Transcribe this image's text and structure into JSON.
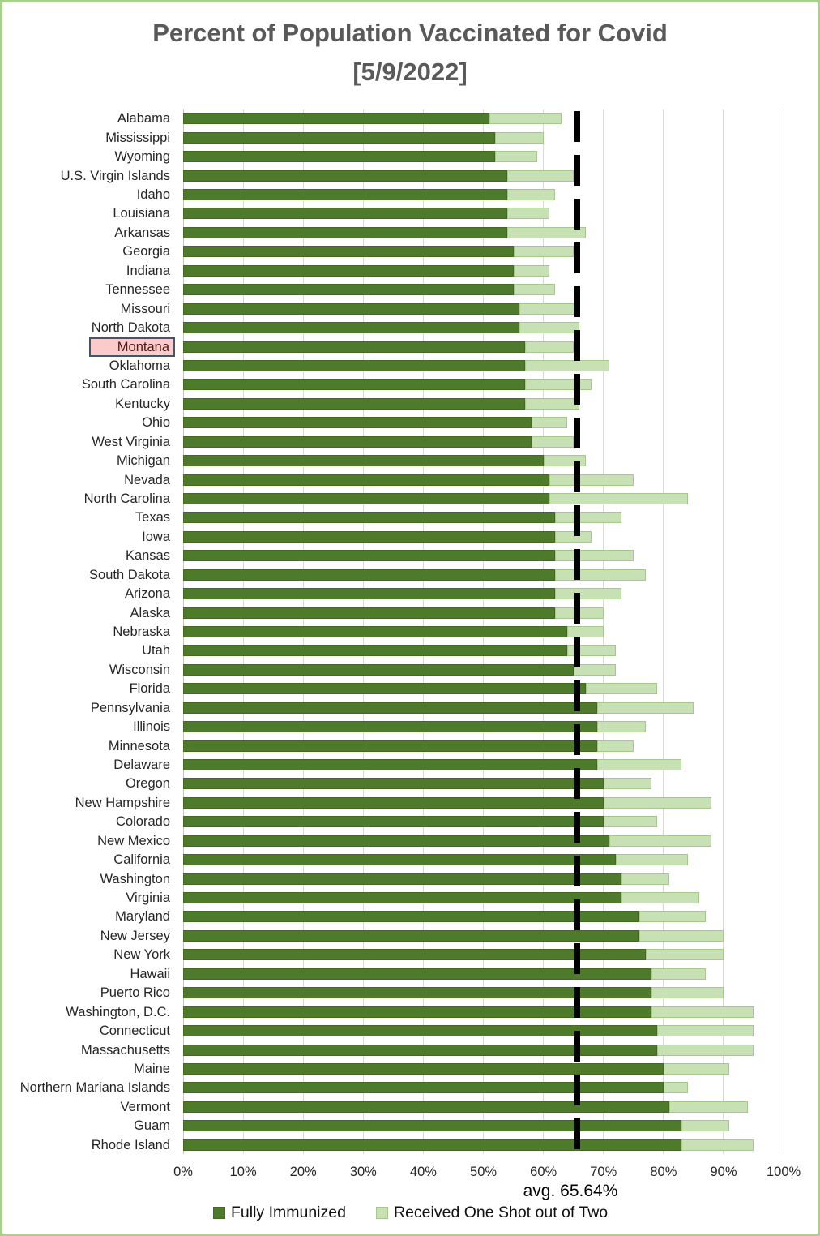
{
  "title": {
    "line1": "Percent of Population Vaccinated for Covid",
    "line2": "[5/9/2022]"
  },
  "chart_data": {
    "type": "bar",
    "orientation": "horizontal",
    "stacked": true,
    "title": "Percent of Population Vaccinated for Covid [5/9/2022]",
    "categories": [
      "Alabama",
      "Mississippi",
      "Wyoming",
      "U.S. Virgin Islands",
      "Idaho",
      "Louisiana",
      "Arkansas",
      "Georgia",
      "Indiana",
      "Tennessee",
      "Missouri",
      "North Dakota",
      "Montana",
      "Oklahoma",
      "South Carolina",
      "Kentucky",
      "Ohio",
      "West Virginia",
      "Michigan",
      "Nevada",
      "North Carolina",
      "Texas",
      "Iowa",
      "Kansas",
      "South Dakota",
      "Arizona",
      "Alaska",
      "Nebraska",
      "Utah",
      "Wisconsin",
      "Florida",
      "Pennsylvania",
      "Illinois",
      "Minnesota",
      "Delaware",
      "Oregon",
      "New Hampshire",
      "Colorado",
      "New Mexico",
      "California",
      "Washington",
      "Virginia",
      "Maryland",
      "New Jersey",
      "New York",
      "Hawaii",
      "Puerto Rico",
      "Washington, D.C.",
      "Connecticut",
      "Massachusetts",
      "Maine",
      "Northern Mariana Islands",
      "Vermont",
      "Guam",
      "Rhode Island"
    ],
    "series": [
      {
        "name": "Fully Immunized",
        "color": "#4e7a2b",
        "values": [
          51,
          52,
          52,
          54,
          54,
          54,
          54,
          55,
          55,
          55,
          56,
          56,
          57,
          57,
          57,
          57,
          58,
          58,
          60,
          61,
          61,
          62,
          62,
          62,
          62,
          62,
          62,
          64,
          64,
          65,
          67,
          69,
          69,
          69,
          69,
          70,
          70,
          70,
          71,
          72,
          73,
          73,
          76,
          76,
          77,
          78,
          78,
          78,
          79,
          79,
          80,
          80,
          81,
          83,
          83
        ]
      },
      {
        "name": "Received One Shot out of Two",
        "color": "#c7e1b5",
        "values": [
          12,
          8,
          7,
          11,
          8,
          7,
          13,
          10,
          6,
          7,
          10,
          10,
          8,
          14,
          11,
          9,
          6,
          7,
          7,
          14,
          23,
          11,
          6,
          13,
          15,
          11,
          8,
          6,
          8,
          7,
          12,
          16,
          8,
          6,
          14,
          8,
          18,
          9,
          17,
          12,
          8,
          13,
          11,
          14,
          13,
          9,
          12,
          17,
          16,
          16,
          11,
          4,
          13,
          8,
          12
        ]
      }
    ],
    "x_axis": {
      "min": 0,
      "max": 100,
      "tick_step": 10,
      "ticks": [
        "0%",
        "10%",
        "20%",
        "30%",
        "40%",
        "50%",
        "60%",
        "70%",
        "80%",
        "90%",
        "100%"
      ]
    },
    "average_line": {
      "label": "avg. 65.64%",
      "value": 65.64,
      "style": "dashed",
      "color": "#000000"
    },
    "highlighted_category": {
      "name": "Montana",
      "index": 12,
      "box_fill": "#fbcaca",
      "box_border": "#44546a",
      "text_color": "#4f1717"
    },
    "legend_position": "bottom",
    "gridlines": true,
    "colors": {
      "fully": "#4e7a2b",
      "one_shot": "#c7e1b5",
      "one_shot_border": "#a5c98b",
      "gridline": "#d9d9d9",
      "frame_border": "#a9d18e",
      "title_text": "#595959"
    }
  },
  "legend": {
    "items": [
      {
        "label": "Fully Immunized",
        "color": "#4e7a2b"
      },
      {
        "label": "Received One Shot out of Two",
        "color": "#c7e1b5"
      }
    ]
  }
}
